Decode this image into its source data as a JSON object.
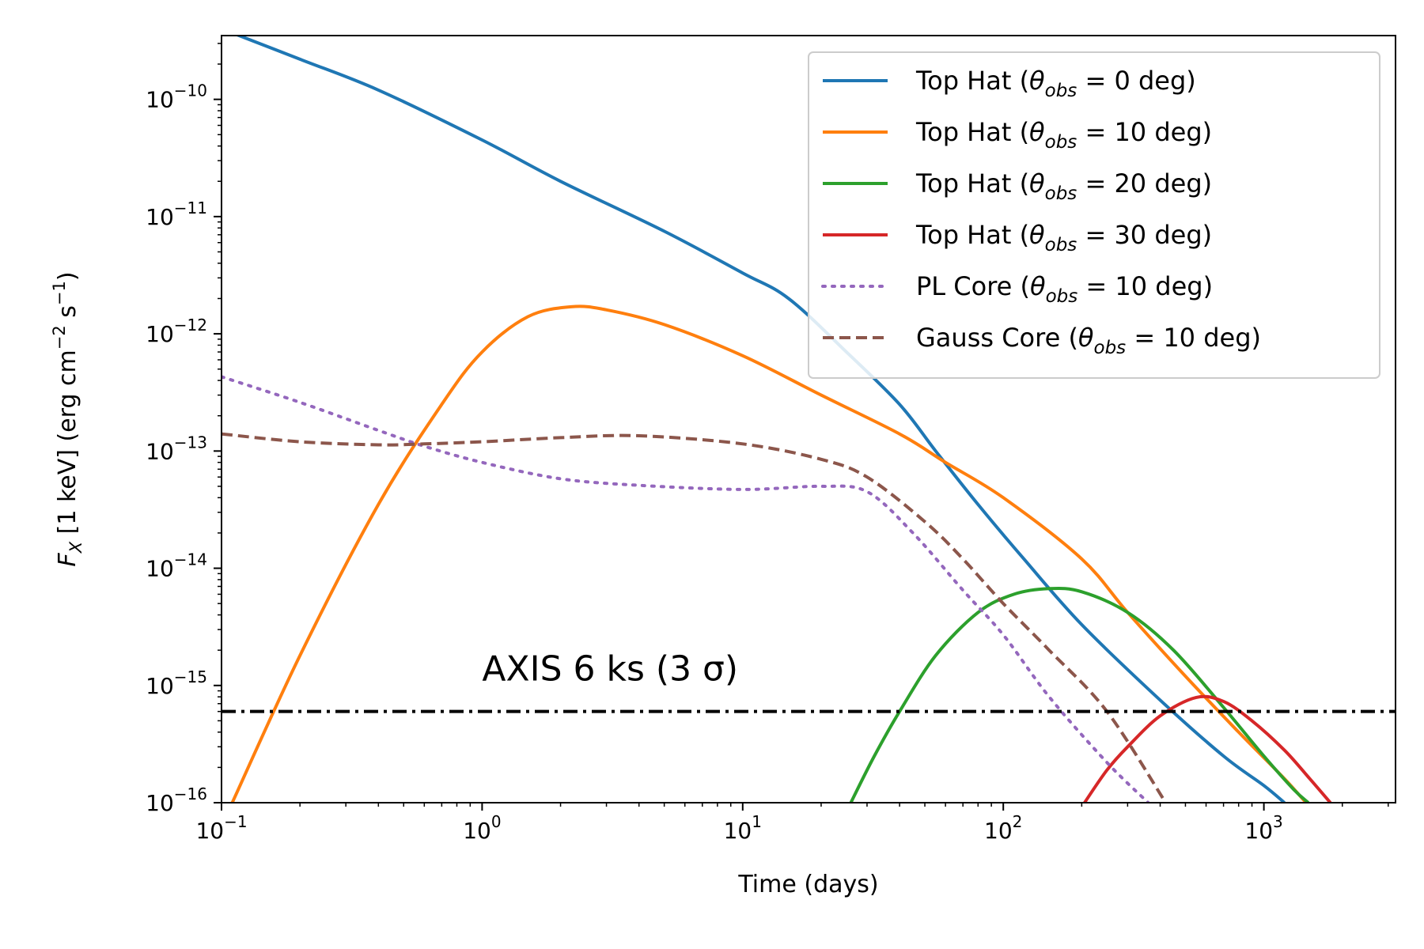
{
  "chart_data": {
    "type": "line",
    "title": "",
    "xlabel": "Time (days)",
    "ylabel": "F_X [1 keV] (erg cm^-2 s^-1)",
    "xscale": "log",
    "yscale": "log",
    "xlim": [
      0.1,
      3200
    ],
    "ylim": [
      1e-16,
      3.5e-10
    ],
    "x_ticks": [
      {
        "value": 0.1,
        "base": "10",
        "exp": "−1"
      },
      {
        "value": 1,
        "base": "10",
        "exp": "0"
      },
      {
        "value": 10,
        "base": "10",
        "exp": "1"
      },
      {
        "value": 100,
        "base": "10",
        "exp": "2"
      },
      {
        "value": 1000,
        "base": "10",
        "exp": "3"
      }
    ],
    "y_ticks": [
      {
        "value": 1e-16,
        "base": "10",
        "exp": "−16"
      },
      {
        "value": 1e-15,
        "base": "10",
        "exp": "−15"
      },
      {
        "value": 1e-14,
        "base": "10",
        "exp": "−14"
      },
      {
        "value": 1e-13,
        "base": "10",
        "exp": "−13"
      },
      {
        "value": 1e-12,
        "base": "10",
        "exp": "−12"
      },
      {
        "value": 1e-11,
        "base": "10",
        "exp": "−11"
      },
      {
        "value": 1e-10,
        "base": "10",
        "exp": "−10"
      }
    ],
    "series": [
      {
        "name": "Top Hat (θobs = 0 deg)",
        "legend_prefix": "Top Hat (",
        "legend_suffix": " = 0 deg)",
        "color": "#1f77b4",
        "style": "solid",
        "x": [
          0.1,
          0.2,
          0.4,
          1,
          2,
          5,
          10,
          15,
          25,
          40,
          55,
          80,
          120,
          200,
          400,
          700,
          1000,
          1200
        ],
        "y": [
          4e-10,
          2.2e-10,
          1.2e-10,
          4.5e-11,
          2e-11,
          7.5e-12,
          3.3e-12,
          2e-12,
          7e-13,
          2.5e-13,
          1e-13,
          3.5e-14,
          1.2e-14,
          3.3e-15,
          7.5e-16,
          2.5e-16,
          1.4e-16,
          1e-16
        ]
      },
      {
        "name": "Top Hat (θobs = 10 deg)",
        "legend_prefix": "Top Hat (",
        "legend_suffix": " = 10 deg)",
        "color": "#ff7f0e",
        "style": "solid",
        "x": [
          0.11,
          0.2,
          0.4,
          0.7,
          1,
          1.5,
          2.2,
          3,
          5,
          10,
          20,
          40,
          60,
          100,
          200,
          300,
          500,
          800,
          1200,
          1450
        ],
        "y": [
          1e-16,
          1.8e-15,
          3.5e-14,
          2.5e-13,
          7e-13,
          1.4e-12,
          1.7e-12,
          1.6e-12,
          1.2e-12,
          6.5e-13,
          3e-13,
          1.4e-13,
          8e-14,
          4e-14,
          1.2e-14,
          4.2e-15,
          1.2e-15,
          4e-16,
          1.6e-16,
          1e-16
        ]
      },
      {
        "name": "Top Hat (θobs = 20 deg)",
        "legend_prefix": "Top Hat (",
        "legend_suffix": " = 20 deg)",
        "color": "#2ca02c",
        "style": "solid",
        "x": [
          26,
          32,
          40,
          55,
          80,
          110,
          150,
          200,
          300,
          450,
          700,
          1000,
          1300,
          1480
        ],
        "y": [
          1e-16,
          2.5e-16,
          6e-16,
          1.8e-15,
          4.2e-15,
          6e-15,
          6.7e-15,
          6.3e-15,
          4.2e-15,
          2e-15,
          6.5e-16,
          2.5e-16,
          1.3e-16,
          1e-16
        ]
      },
      {
        "name": "Top Hat (θobs = 30 deg)",
        "legend_prefix": "Top Hat (",
        "legend_suffix": " = 30 deg)",
        "color": "#d62728",
        "style": "solid",
        "x": [
          205,
          250,
          300,
          400,
          550,
          700,
          900,
          1200,
          1500,
          1800
        ],
        "y": [
          1e-16,
          1.9e-16,
          3e-16,
          5.5e-16,
          7.9e-16,
          7.3e-16,
          5e-16,
          2.8e-16,
          1.6e-16,
          1e-16
        ]
      },
      {
        "name": "PL Core (θobs = 10 deg)",
        "legend_prefix": "PL Core (",
        "legend_suffix": " = 10 deg)",
        "color": "#9467bd",
        "style": "dotted",
        "x": [
          0.1,
          0.2,
          0.4,
          0.6,
          1,
          2,
          4,
          10,
          20,
          30,
          45,
          70,
          100,
          150,
          250,
          360
        ],
        "y": [
          4.3e-13,
          2.6e-13,
          1.5e-13,
          1.1e-13,
          8e-14,
          5.8e-14,
          5.1e-14,
          4.7e-14,
          5e-14,
          4.5e-14,
          2e-14,
          6.5e-15,
          2.7e-15,
          8e-16,
          2.2e-16,
          1e-16
        ]
      },
      {
        "name": "Gauss Core (θobs = 10 deg)",
        "legend_prefix": "Gauss Core (",
        "legend_suffix": " = 10 deg)",
        "color": "#8c564b",
        "style": "dashed",
        "x": [
          0.1,
          0.2,
          0.4,
          0.6,
          1,
          2,
          4,
          10,
          20,
          30,
          50,
          70,
          100,
          150,
          250,
          420
        ],
        "y": [
          1.4e-13,
          1.2e-13,
          1.13e-13,
          1.15e-13,
          1.2e-13,
          1.3e-13,
          1.35e-13,
          1.15e-13,
          8.5e-14,
          6e-14,
          2.5e-14,
          1.2e-14,
          5e-15,
          2e-15,
          6e-16,
          1e-16
        ]
      }
    ],
    "threshold": {
      "label": "AXIS 6 ks (3 σ)",
      "value": 6e-16,
      "color": "#000000",
      "style": "dashdot",
      "label_x": 1,
      "label_y": 1.1e-15
    },
    "legend_symbol": "θ",
    "legend_subscript": "obs",
    "legend_position": "top-right"
  }
}
